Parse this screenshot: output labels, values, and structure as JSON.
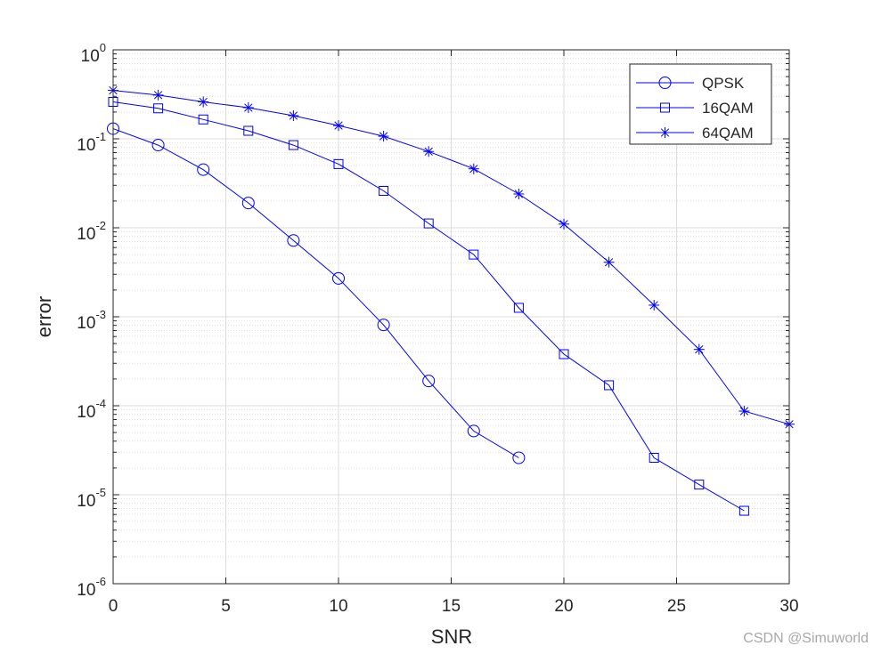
{
  "chart_data": {
    "type": "line",
    "title": "",
    "xlabel": "SNR",
    "ylabel": "error",
    "xlim": [
      0,
      30
    ],
    "ylim": [
      1e-06,
      1
    ],
    "yscale": "log",
    "grid": true,
    "legend_position": "top-right",
    "x_ticks": [
      0,
      5,
      10,
      15,
      20,
      25,
      30
    ],
    "x_tick_labels": [
      "0",
      "5",
      "10",
      "15",
      "20",
      "25",
      "30"
    ],
    "y_ticks": [
      1,
      0.1,
      0.01,
      0.001,
      0.0001,
      1e-05,
      1e-06
    ],
    "y_tick_labels": [
      {
        "base": "10",
        "exp": "0"
      },
      {
        "base": "10",
        "exp": "-1"
      },
      {
        "base": "10",
        "exp": "-2"
      },
      {
        "base": "10",
        "exp": "-3"
      },
      {
        "base": "10",
        "exp": "-4"
      },
      {
        "base": "10",
        "exp": "-5"
      },
      {
        "base": "10",
        "exp": "-6"
      }
    ],
    "series": [
      {
        "name": "QPSK",
        "marker": "circle",
        "color": "#0000ff",
        "x": [
          0,
          2,
          4,
          6,
          8,
          10,
          12,
          14,
          16,
          18
        ],
        "y": [
          0.13,
          0.085,
          0.045,
          0.019,
          0.0072,
          0.0027,
          0.00081,
          0.00019,
          5.2e-05,
          2.6e-05
        ]
      },
      {
        "name": "16QAM",
        "marker": "square",
        "color": "#0000ff",
        "x": [
          0,
          2,
          4,
          6,
          8,
          10,
          12,
          14,
          16,
          18,
          20,
          22,
          24,
          26,
          28
        ],
        "y": [
          0.26,
          0.22,
          0.165,
          0.123,
          0.085,
          0.052,
          0.026,
          0.0112,
          0.005,
          0.00126,
          0.00038,
          0.00017,
          2.6e-05,
          1.3e-05,
          6.6e-06
        ]
      },
      {
        "name": "64QAM",
        "marker": "asterisk",
        "color": "#0000ff",
        "x": [
          0,
          2,
          4,
          6,
          8,
          10,
          12,
          14,
          16,
          18,
          20,
          22,
          24,
          26,
          28,
          30
        ],
        "y": [
          0.35,
          0.31,
          0.26,
          0.224,
          0.182,
          0.141,
          0.107,
          0.072,
          0.046,
          0.024,
          0.011,
          0.0041,
          0.00135,
          0.00043,
          8.7e-05,
          6.2e-05
        ]
      }
    ]
  },
  "watermark": "CSDN @Simuworld"
}
